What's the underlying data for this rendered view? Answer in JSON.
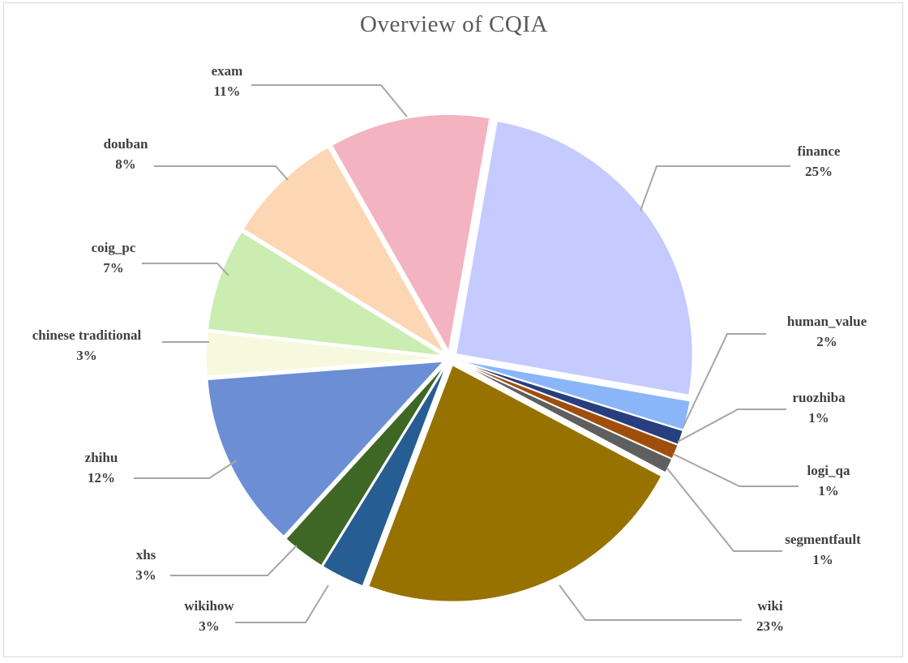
{
  "chart_data": {
    "type": "pie",
    "title": "Overview of CQIA",
    "exploded": true,
    "slices": [
      {
        "label": "finance",
        "value": 25,
        "pct_label": "25%",
        "color": "#C5CBFF"
      },
      {
        "label": "human_value",
        "value": 2,
        "pct_label": "2%",
        "color": "#8AB6F9"
      },
      {
        "label": "ruozhiba",
        "value": 1,
        "pct_label": "1%",
        "color": "#273F7E"
      },
      {
        "label": "logi_qa",
        "value": 1,
        "pct_label": "1%",
        "color": "#A04E0C"
      },
      {
        "label": "segmentfault",
        "value": 1,
        "pct_label": "1%",
        "color": "#5F5F5F"
      },
      {
        "label": "wiki",
        "value": 23,
        "pct_label": "23%",
        "color": "#977200"
      },
      {
        "label": "wikihow",
        "value": 3,
        "pct_label": "3%",
        "color": "#265D92"
      },
      {
        "label": "xhs",
        "value": 3,
        "pct_label": "3%",
        "color": "#3E6625"
      },
      {
        "label": "zhihu",
        "value": 12,
        "pct_label": "12%",
        "color": "#6B8ED4"
      },
      {
        "label": "chinese traditional",
        "value": 3,
        "pct_label": "3%",
        "color": "#F6F9DE"
      },
      {
        "label": "coig_pc",
        "value": 7,
        "pct_label": "7%",
        "color": "#CBEDB1"
      },
      {
        "label": "douban",
        "value": 8,
        "pct_label": "8%",
        "color": "#FDD6B3"
      },
      {
        "label": "exam",
        "value": 11,
        "pct_label": "11%",
        "color": "#F4B3C1"
      }
    ]
  }
}
